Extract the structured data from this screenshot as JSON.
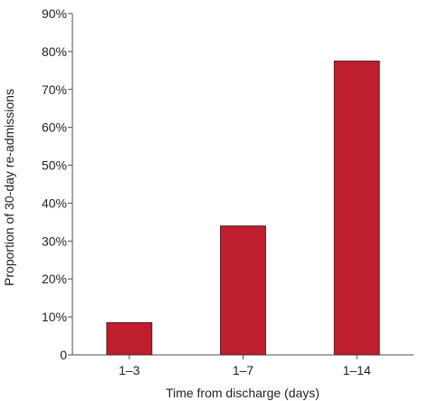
{
  "chart_data": {
    "type": "bar",
    "categories": [
      "1–3",
      "1–7",
      "1–14"
    ],
    "values": [
      8.5,
      34,
      77.5
    ],
    "title": "",
    "xlabel": "Time from discharge (days)",
    "ylabel": "Proportion of 30-day re-admissions",
    "ylim": [
      0,
      90
    ],
    "yticks": [
      0,
      10,
      20,
      30,
      40,
      50,
      60,
      70,
      80,
      90
    ],
    "ytick_labels": [
      "0",
      "10%",
      "20%",
      "30%",
      "40%",
      "50%",
      "60%",
      "70%",
      "80%",
      "90%"
    ],
    "grid": false,
    "legend": "none",
    "colors": {
      "bar_fill": "#be1e2d",
      "bar_stroke": "#3a1a1a",
      "axis": "#4d4d4d",
      "text": "#231f20"
    }
  }
}
